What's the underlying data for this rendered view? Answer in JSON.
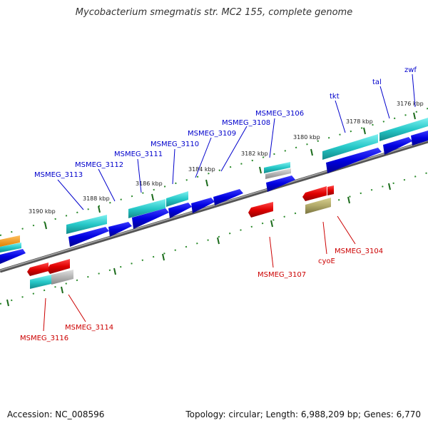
{
  "title": "Mycobacterium smegmatis str. MC2 155, complete genome",
  "footer": {
    "accession": "Accession: NC_008596",
    "topology": "Topology: circular; Length: 6,988,209 bp; Genes: 6,770"
  },
  "colors": {
    "label_blue": "#0000cc",
    "label_red": "#cc0000",
    "cds_blue": "#0000dd",
    "gene_cyan": "#22c4c4",
    "cds_red": "#e00000",
    "gene_olive": "#a8a060",
    "gene_gray": "#b0b0b0",
    "backbone": "#777777",
    "tick_green": "#2a8a2a"
  },
  "ticks": [
    {
      "text": "3176 kbp"
    },
    {
      "text": "3178 kbp"
    },
    {
      "text": "3180 kbp"
    },
    {
      "text": "3182 kbp"
    },
    {
      "text": "3184 kbp"
    },
    {
      "text": "3186 kbp"
    },
    {
      "text": "3188 kbp"
    },
    {
      "text": "3190 kbp"
    }
  ],
  "forward_labels": [
    {
      "text": "zwf"
    },
    {
      "text": "tal"
    },
    {
      "text": "tkt"
    },
    {
      "text": "MSMEG_3106"
    },
    {
      "text": "MSMEG_3108"
    },
    {
      "text": "MSMEG_3109"
    },
    {
      "text": "MSMEG_3110"
    },
    {
      "text": "MSMEG_3111"
    },
    {
      "text": "MSMEG_3112"
    },
    {
      "text": "MSMEG_3113"
    }
  ],
  "reverse_labels": [
    {
      "text": "MSMEG_3104"
    },
    {
      "text": "cyoE"
    },
    {
      "text": "MSMEG_3107"
    },
    {
      "text": "MSMEG_3114"
    },
    {
      "text": "MSMEG_3116"
    }
  ]
}
